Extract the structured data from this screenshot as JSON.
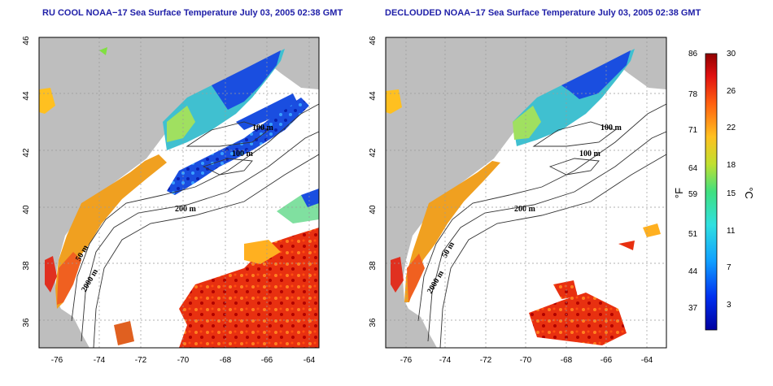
{
  "panels": [
    {
      "id": "left",
      "title": "RU COOL NOAA−17 Sea Surface Temperature July 03, 2005 02:38 GMT"
    },
    {
      "id": "right",
      "title": "DECLOUDED NOAA−17 Sea Surface Temperature July 03, 2005 02:38 GMT"
    }
  ],
  "axes": {
    "lon_ticks": [
      "-76",
      "-74",
      "-72",
      "-70",
      "-68",
      "-66",
      "-64"
    ],
    "lat_ticks": [
      "46",
      "44",
      "42",
      "40",
      "38",
      "36"
    ]
  },
  "isobaths": {
    "label_100": "100 m",
    "label_50": "50 m",
    "label_200": "200 m",
    "label_2000": "2000 m"
  },
  "colorbar": {
    "fahrenheit_ticks": [
      "86",
      "78",
      "71",
      "64",
      "59",
      "51",
      "44",
      "37"
    ],
    "celsius_ticks": [
      "30",
      "26",
      "22",
      "18",
      "15",
      "11",
      "7",
      "3"
    ],
    "fahrenheit_unit": "°F",
    "celsius_unit": "°C"
  },
  "colors": {
    "land": "#bebebe",
    "ocean_nodata": "#ffffff",
    "cold": "#1010c0",
    "warm": "#d01818"
  }
}
